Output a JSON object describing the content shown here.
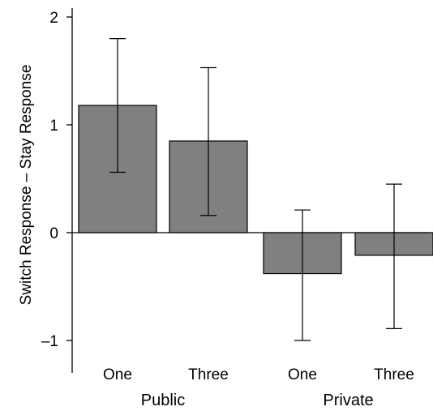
{
  "chart_data": {
    "type": "bar",
    "title": "",
    "xlabel": "",
    "ylabel": "Switch Response – Stay Response",
    "ylim": [
      -1.25,
      2.1
    ],
    "yticks": [
      {
        "value": -1,
        "label": "–1"
      },
      {
        "value": 0,
        "label": "0"
      },
      {
        "value": 1,
        "label": "1"
      },
      {
        "value": 2,
        "label": "2"
      }
    ],
    "groups": [
      {
        "label": "Public",
        "categories": [
          "One",
          "Three"
        ]
      },
      {
        "label": "Private",
        "categories": [
          "One",
          "Three"
        ]
      }
    ],
    "categories": [
      "One",
      "Three",
      "One",
      "Three"
    ],
    "values": [
      1.18,
      0.85,
      -0.38,
      -0.21
    ],
    "error_low": [
      0.56,
      0.16,
      -1.0,
      -0.89
    ],
    "error_high": [
      1.8,
      1.53,
      0.21,
      0.45
    ],
    "bar_color": "#808080",
    "bar_stroke": "#000000",
    "grid": false,
    "legend": "none"
  }
}
